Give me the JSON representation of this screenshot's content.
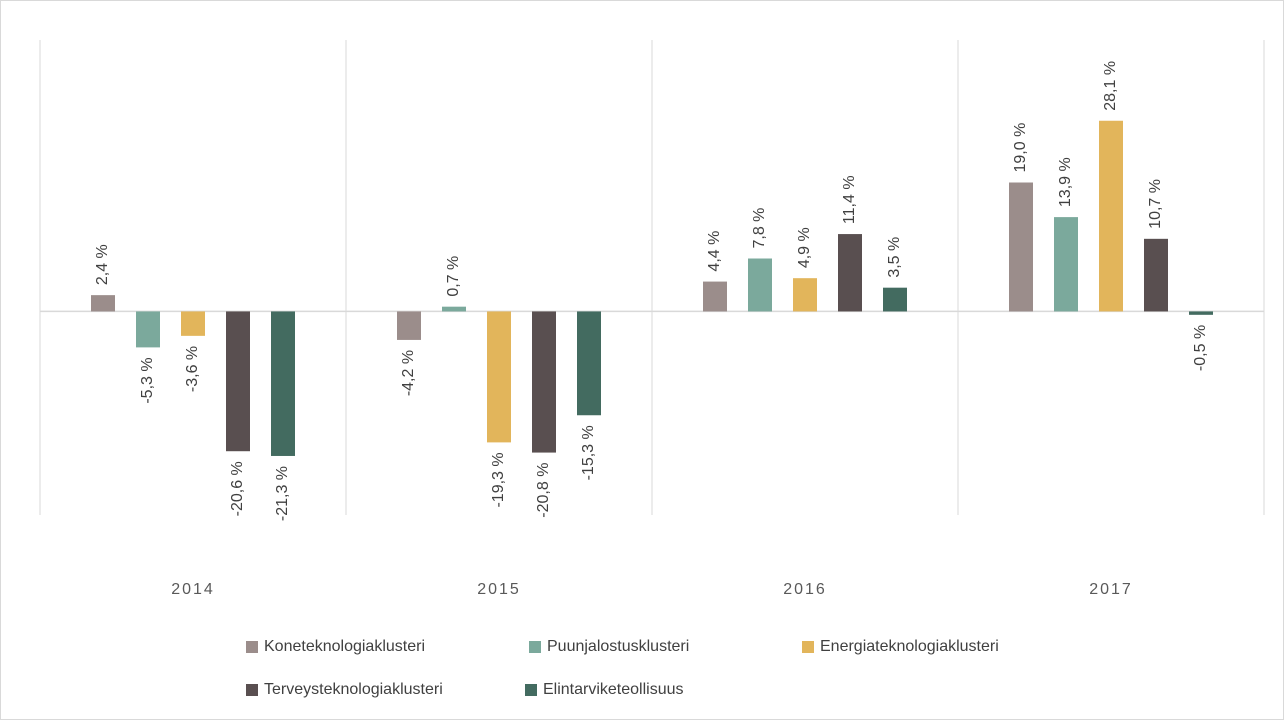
{
  "chart_data": {
    "type": "bar",
    "categories": [
      "2014",
      "2015",
      "2016",
      "2017"
    ],
    "ylim": [
      -30,
      40
    ],
    "series": [
      {
        "name": "Koneteknologiaklusteri",
        "color": "#9b8d8b",
        "values": [
          2.4,
          -4.2,
          4.4,
          19.0
        ],
        "value_labels": [
          "2,4 %",
          "-4,2 %",
          "4,4 %",
          "19,0 %"
        ]
      },
      {
        "name": "Puunjalostusklusteri",
        "color": "#7ba99c",
        "values": [
          -5.3,
          0.7,
          7.8,
          13.9
        ],
        "value_labels": [
          "-5,3 %",
          "0,7 %",
          "7,8 %",
          "13,9 %"
        ]
      },
      {
        "name": "Energiateknologiaklusteri",
        "color": "#e2b55b",
        "values": [
          -3.6,
          -19.3,
          4.9,
          28.1
        ],
        "value_labels": [
          "-3,6 %",
          "-19,3 %",
          "4,9 %",
          "28,1 %"
        ]
      },
      {
        "name": "Terveysteknologiaklusteri",
        "color": "#594f50",
        "values": [
          -20.6,
          -20.8,
          11.4,
          10.7
        ],
        "value_labels": [
          "-20,6 %",
          "-20,8 %",
          "11,4 %",
          "10,7 %"
        ]
      },
      {
        "name": "Elintarviketeollisuus",
        "color": "#436b60",
        "values": [
          -21.3,
          -15.3,
          3.5,
          -0.5
        ],
        "value_labels": [
          "-21,3 %",
          "-15,3 %",
          "3,5 %",
          "-0,5 %"
        ]
      }
    ]
  }
}
